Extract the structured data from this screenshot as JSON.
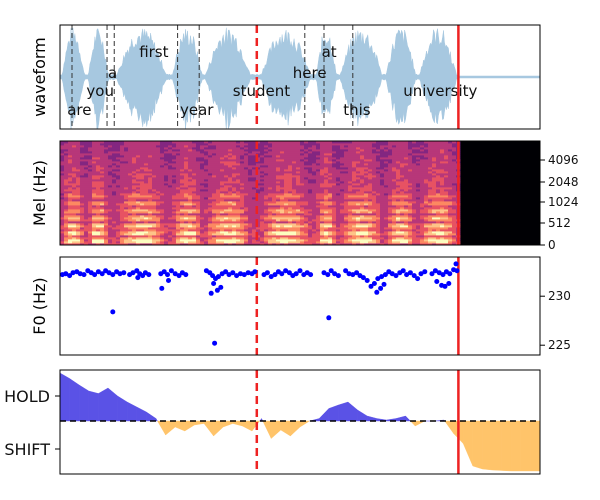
{
  "chart_data": [
    {
      "type": "area",
      "panel": "waveform",
      "ylabel": "waveform",
      "x_range": [
        0,
        10
      ],
      "speech_end": 8.3,
      "words": [
        {
          "text": "are",
          "x": 0.15,
          "row": "low"
        },
        {
          "text": "you",
          "x": 0.55,
          "row": "mid"
        },
        {
          "text": "a",
          "x": 1.0,
          "row": "high2"
        },
        {
          "text": "first",
          "x": 1.65,
          "row": "top"
        },
        {
          "text": "year",
          "x": 2.5,
          "row": "low"
        },
        {
          "text": "student",
          "x": 3.6,
          "row": "mid"
        },
        {
          "text": "here",
          "x": 4.85,
          "row": "high2"
        },
        {
          "text": "at",
          "x": 5.45,
          "row": "top"
        },
        {
          "text": "this",
          "x": 5.9,
          "row": "low"
        },
        {
          "text": "university",
          "x": 7.15,
          "row": "mid"
        }
      ],
      "word_boundaries": [
        0.25,
        0.98,
        1.13,
        2.45,
        2.9,
        5.1,
        5.5,
        6.1
      ],
      "vlines": {
        "dashed": 4.1,
        "solid": 8.3
      }
    },
    {
      "type": "heatmap",
      "panel": "mel",
      "ylabel": "Mel (Hz)",
      "yticks": [
        "0",
        "512",
        "1024",
        "2048",
        "4096"
      ],
      "colormap": "magma",
      "vlines": {
        "dashed": 4.1,
        "solid": 8.3
      }
    },
    {
      "type": "scatter",
      "panel": "f0",
      "ylabel": "F0 (Hz)",
      "yticks": [
        225,
        230
      ],
      "ylim": [
        224,
        234
      ],
      "color": "#0000ff",
      "points": [
        [
          0.05,
          232.2
        ],
        [
          0.12,
          232.3
        ],
        [
          0.2,
          232.1
        ],
        [
          0.27,
          232.4
        ],
        [
          0.35,
          232.5
        ],
        [
          0.42,
          232.3
        ],
        [
          0.5,
          232.2
        ],
        [
          0.58,
          232.6
        ],
        [
          0.65,
          232.4
        ],
        [
          0.72,
          232.2
        ],
        [
          0.8,
          232.5
        ],
        [
          0.88,
          232.3
        ],
        [
          0.95,
          232.6
        ],
        [
          1.02,
          232.4
        ],
        [
          1.1,
          232.2
        ],
        [
          1.18,
          232.5
        ],
        [
          1.25,
          232.3
        ],
        [
          1.33,
          232.4
        ],
        [
          1.1,
          228.4
        ],
        [
          1.45,
          232.2
        ],
        [
          1.52,
          232.4
        ],
        [
          1.6,
          232.6
        ],
        [
          1.66,
          232.3
        ],
        [
          1.72,
          232.1
        ],
        [
          1.78,
          232.4
        ],
        [
          1.85,
          232.2
        ],
        [
          1.62,
          231.9
        ],
        [
          2.1,
          232.3
        ],
        [
          2.17,
          232.5
        ],
        [
          2.24,
          232.2
        ],
        [
          2.32,
          232.6
        ],
        [
          2.4,
          232.3
        ],
        [
          2.48,
          232.1
        ],
        [
          2.55,
          232.4
        ],
        [
          2.62,
          232.2
        ],
        [
          2.26,
          231.6
        ],
        [
          2.12,
          230.8
        ],
        [
          3.05,
          232.6
        ],
        [
          3.12,
          232.4
        ],
        [
          3.18,
          232.1
        ],
        [
          3.24,
          231.8
        ],
        [
          3.3,
          232.0
        ],
        [
          3.38,
          232.3
        ],
        [
          3.45,
          232.5
        ],
        [
          3.52,
          232.2
        ],
        [
          3.6,
          232.4
        ],
        [
          3.68,
          232.1
        ],
        [
          3.76,
          232.3
        ],
        [
          3.84,
          232.2
        ],
        [
          3.92,
          232.4
        ],
        [
          4.0,
          232.3
        ],
        [
          4.06,
          232.5
        ],
        [
          3.2,
          231.3
        ],
        [
          3.28,
          230.6
        ],
        [
          3.35,
          230.9
        ],
        [
          3.15,
          230.3
        ],
        [
          3.22,
          225.2
        ],
        [
          4.25,
          232.2
        ],
        [
          4.32,
          232.4
        ],
        [
          4.4,
          232.0
        ],
        [
          4.48,
          232.2
        ],
        [
          4.55,
          232.5
        ],
        [
          4.62,
          232.3
        ],
        [
          4.7,
          232.6
        ],
        [
          4.78,
          232.4
        ],
        [
          4.85,
          232.1
        ],
        [
          4.92,
          232.3
        ],
        [
          5.0,
          232.6
        ],
        [
          5.08,
          232.2
        ],
        [
          5.15,
          232.4
        ],
        [
          5.22,
          232.2
        ],
        [
          5.5,
          232.4
        ],
        [
          5.58,
          232.2
        ],
        [
          5.65,
          232.6
        ],
        [
          5.72,
          232.3
        ],
        [
          5.8,
          232.1
        ],
        [
          5.6,
          227.8
        ],
        [
          5.95,
          232.6
        ],
        [
          6.02,
          232.3
        ],
        [
          6.1,
          232.2
        ],
        [
          6.18,
          232.4
        ],
        [
          6.25,
          232.1
        ],
        [
          6.32,
          231.9
        ],
        [
          6.4,
          231.6
        ],
        [
          6.48,
          231.0
        ],
        [
          6.55,
          231.3
        ],
        [
          6.62,
          231.8
        ],
        [
          6.7,
          232.0
        ],
        [
          6.78,
          232.2
        ],
        [
          6.85,
          232.5
        ],
        [
          6.92,
          232.3
        ],
        [
          7.0,
          232.1
        ],
        [
          7.08,
          232.4
        ],
        [
          7.15,
          232.6
        ],
        [
          7.22,
          232.2
        ],
        [
          7.3,
          232.4
        ],
        [
          7.38,
          232.1
        ],
        [
          7.45,
          231.8
        ],
        [
          7.52,
          232.3
        ],
        [
          7.6,
          232.5
        ],
        [
          6.6,
          230.4
        ],
        [
          6.68,
          230.8
        ],
        [
          6.75,
          231.2
        ],
        [
          7.75,
          232.3
        ],
        [
          7.82,
          232.6
        ],
        [
          7.9,
          232.4
        ],
        [
          7.98,
          232.2
        ],
        [
          8.05,
          232.5
        ],
        [
          8.12,
          232.3
        ],
        [
          8.2,
          232.7
        ],
        [
          8.27,
          232.6
        ],
        [
          7.85,
          231.5
        ],
        [
          7.95,
          231.1
        ],
        [
          8.02,
          231.0
        ],
        [
          8.1,
          231.3
        ],
        [
          8.25,
          233.3
        ]
      ],
      "vlines": {
        "dashed": 4.1,
        "solid": 8.3
      }
    },
    {
      "type": "area",
      "panel": "turn",
      "yticks": [
        "HOLD",
        "SHIFT"
      ],
      "ylim": [
        -1.05,
        1.0
      ],
      "hold_color": "#5a52e6",
      "shift_color": "#ffc46a",
      "x": [
        0,
        0.2,
        0.4,
        0.6,
        0.8,
        1.0,
        1.2,
        1.4,
        1.6,
        1.8,
        2.0,
        2.2,
        2.4,
        2.6,
        2.8,
        3.0,
        3.2,
        3.4,
        3.6,
        3.8,
        4.0,
        4.2,
        4.4,
        4.6,
        4.8,
        5.0,
        5.2,
        5.4,
        5.6,
        5.8,
        6.0,
        6.2,
        6.4,
        6.6,
        6.8,
        7.0,
        7.2,
        7.4,
        7.6,
        7.8,
        8.0,
        8.2,
        8.4,
        8.6,
        8.8,
        9.0,
        9.2,
        9.4,
        9.6,
        9.8,
        10.0
      ],
      "values": [
        0.96,
        0.85,
        0.72,
        0.6,
        0.55,
        0.66,
        0.5,
        0.38,
        0.28,
        0.18,
        0.05,
        -0.28,
        -0.12,
        -0.2,
        -0.08,
        -0.05,
        -0.3,
        -0.12,
        -0.05,
        -0.1,
        -0.2,
        0.05,
        -0.35,
        -0.18,
        -0.3,
        -0.12,
        0.0,
        0.05,
        0.25,
        0.32,
        0.38,
        0.22,
        0.1,
        0.05,
        0.02,
        0.05,
        0.1,
        -0.1,
        0.0,
        0.0,
        0.02,
        -0.25,
        -0.45,
        -0.9,
        -0.96,
        -0.98,
        -0.99,
        -1.0,
        -1.0,
        -1.0,
        -1.0
      ],
      "vlines": {
        "dashed": 4.1,
        "solid": 8.3
      }
    }
  ]
}
